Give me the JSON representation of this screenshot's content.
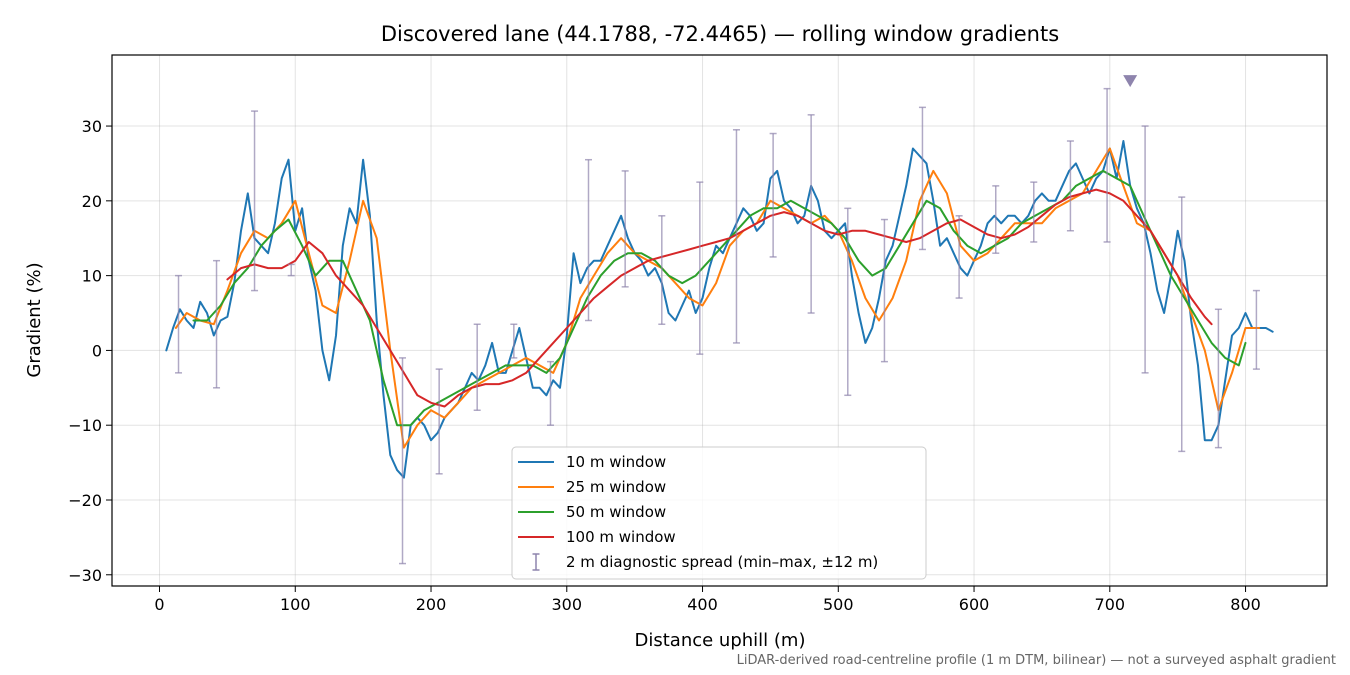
{
  "chart_data": {
    "type": "line",
    "title": "Discovered lane (44.1788, -72.4465) — rolling window gradients",
    "xlabel": "Distance uphill (m)",
    "ylabel": "Gradient (%)",
    "xlim": [
      -35,
      860
    ],
    "ylim": [
      -31.5,
      39.5
    ],
    "x_ticks": [
      0,
      100,
      200,
      300,
      400,
      500,
      600,
      700,
      800
    ],
    "y_ticks": [
      -30,
      -20,
      -10,
      0,
      10,
      20,
      30
    ],
    "x_tick_labels": [
      "0",
      "100",
      "200",
      "300",
      "400",
      "500",
      "600",
      "700",
      "800"
    ],
    "y_tick_labels": [
      "−30",
      "−20",
      "−10",
      "0",
      "10",
      "20",
      "30"
    ],
    "grid": true,
    "legend_position": "bottom-center",
    "footnote": "LiDAR-derived road-centreline profile (1 m DTM, bilinear) — not a surveyed asphalt gradient",
    "series": [
      {
        "name": "10 m window",
        "color": "#1f77b4",
        "x": [
          5,
          10,
          15,
          20,
          25,
          30,
          35,
          40,
          45,
          50,
          55,
          60,
          65,
          70,
          75,
          80,
          85,
          90,
          95,
          100,
          105,
          110,
          115,
          120,
          125,
          130,
          135,
          140,
          145,
          150,
          155,
          160,
          165,
          170,
          175,
          180,
          185,
          190,
          195,
          200,
          205,
          210,
          215,
          220,
          225,
          230,
          235,
          240,
          245,
          250,
          255,
          260,
          265,
          270,
          275,
          280,
          285,
          290,
          295,
          300,
          305,
          310,
          315,
          320,
          325,
          330,
          335,
          340,
          345,
          350,
          355,
          360,
          365,
          370,
          375,
          380,
          385,
          390,
          395,
          400,
          405,
          410,
          415,
          420,
          425,
          430,
          435,
          440,
          445,
          450,
          455,
          460,
          465,
          470,
          475,
          480,
          485,
          490,
          495,
          500,
          505,
          510,
          515,
          520,
          525,
          530,
          535,
          540,
          545,
          550,
          555,
          560,
          565,
          570,
          575,
          580,
          585,
          590,
          595,
          600,
          605,
          610,
          615,
          620,
          625,
          630,
          635,
          640,
          645,
          650,
          655,
          660,
          665,
          670,
          675,
          680,
          685,
          690,
          695,
          700,
          705,
          710,
          715,
          720,
          725,
          730,
          735,
          740,
          745,
          750,
          755,
          760,
          765,
          770,
          775,
          780,
          785,
          790,
          795,
          800,
          805,
          810,
          815,
          820
        ],
        "values": [
          0,
          3,
          5.5,
          4,
          3,
          6.5,
          5,
          2,
          4,
          4.5,
          9,
          16,
          21,
          15,
          14,
          13,
          17,
          23,
          25.5,
          16,
          19,
          12,
          8,
          0,
          -4,
          2,
          14,
          19,
          17,
          25.5,
          18,
          4,
          -6,
          -14,
          -16,
          -17,
          -10,
          -9,
          -10,
          -12,
          -11,
          -9,
          -8,
          -7,
          -5,
          -3,
          -4,
          -2,
          1,
          -3,
          -3,
          0,
          3,
          -1,
          -5,
          -5,
          -6,
          -4,
          -5,
          2,
          13,
          9,
          11,
          12,
          12,
          14,
          16,
          18,
          15,
          13,
          12,
          10,
          11,
          9,
          5,
          4,
          6,
          8,
          5,
          7,
          11,
          14,
          13,
          15,
          17,
          19,
          18,
          16,
          17,
          23,
          24,
          20,
          19,
          17,
          18,
          22,
          20,
          16,
          15,
          16,
          17,
          10,
          5,
          1,
          3,
          7,
          12,
          14,
          18,
          22,
          27,
          26,
          25,
          20,
          14,
          15,
          13,
          11,
          10,
          12,
          14,
          17,
          18,
          17,
          18,
          18,
          17,
          18,
          20,
          21,
          20,
          20,
          22,
          24,
          25,
          23,
          21,
          23,
          24,
          27,
          23,
          28,
          22,
          19,
          17,
          13,
          8,
          5,
          10,
          16,
          12,
          4,
          -2,
          -12,
          -12,
          -10,
          -4,
          2,
          3,
          5,
          3,
          3,
          3,
          2.5
        ]
      },
      {
        "name": "25 m window",
        "color": "#ff7f0e",
        "x": [
          12,
          20,
          30,
          40,
          50,
          60,
          70,
          80,
          90,
          100,
          110,
          120,
          130,
          140,
          150,
          160,
          170,
          180,
          190,
          200,
          210,
          220,
          230,
          240,
          250,
          260,
          270,
          280,
          290,
          300,
          310,
          320,
          330,
          340,
          350,
          360,
          370,
          380,
          390,
          400,
          410,
          420,
          430,
          440,
          450,
          460,
          470,
          480,
          490,
          500,
          510,
          520,
          530,
          540,
          550,
          560,
          570,
          580,
          590,
          600,
          610,
          620,
          630,
          640,
          650,
          660,
          670,
          680,
          690,
          700,
          710,
          720,
          730,
          740,
          750,
          760,
          770,
          780,
          790,
          800,
          810
        ],
        "values": [
          3,
          5,
          4,
          3.5,
          8,
          13,
          16,
          15,
          17,
          20,
          13,
          6,
          5,
          12,
          20,
          15,
          0,
          -13,
          -10,
          -8,
          -9,
          -7,
          -5,
          -4,
          -3,
          -2,
          -1,
          -2,
          -3,
          1,
          7,
          10,
          13,
          15,
          13,
          12,
          11,
          9,
          7,
          6,
          9,
          14,
          16,
          17,
          20,
          19,
          18,
          17,
          18,
          16,
          12,
          7,
          4,
          7,
          12,
          20,
          24,
          21,
          14,
          12,
          13,
          15,
          17,
          17,
          17,
          19,
          20,
          21,
          24,
          27,
          22,
          17,
          16,
          13,
          10,
          5,
          0,
          -8,
          -3,
          3,
          3
        ]
      },
      {
        "name": "50 m window",
        "color": "#2ca02c",
        "x": [
          25,
          35,
          45,
          55,
          65,
          75,
          85,
          95,
          105,
          115,
          125,
          135,
          145,
          155,
          165,
          175,
          185,
          195,
          205,
          215,
          225,
          235,
          245,
          255,
          265,
          275,
          285,
          295,
          305,
          315,
          325,
          335,
          345,
          355,
          365,
          375,
          385,
          395,
          405,
          415,
          425,
          435,
          445,
          455,
          465,
          475,
          485,
          495,
          505,
          515,
          525,
          535,
          545,
          555,
          565,
          575,
          585,
          595,
          605,
          615,
          625,
          635,
          645,
          655,
          665,
          675,
          685,
          695,
          705,
          715,
          725,
          735,
          745,
          755,
          765,
          775,
          785,
          795,
          800
        ],
        "values": [
          4,
          4,
          6,
          9,
          11,
          14,
          16,
          17.5,
          14,
          10,
          12,
          12,
          8,
          4,
          -4,
          -10,
          -10,
          -8,
          -7,
          -6,
          -5,
          -4,
          -3,
          -2,
          -2,
          -2,
          -3,
          -1,
          3,
          7,
          10,
          12,
          13,
          13,
          12,
          10,
          9,
          10,
          12,
          14,
          16,
          18,
          19,
          19,
          20,
          19,
          18,
          17,
          15,
          12,
          10,
          11,
          14,
          17,
          20,
          19,
          16,
          14,
          13,
          14,
          15,
          17,
          18,
          19,
          20,
          22,
          23,
          24,
          23,
          22,
          18,
          14,
          10,
          7,
          4,
          1,
          -1,
          -2,
          1
        ]
      },
      {
        "name": "100 m window",
        "color": "#d62728",
        "x": [
          50,
          60,
          70,
          80,
          90,
          100,
          110,
          120,
          130,
          140,
          150,
          160,
          170,
          180,
          190,
          200,
          210,
          220,
          230,
          240,
          250,
          260,
          270,
          280,
          290,
          300,
          310,
          320,
          330,
          340,
          350,
          360,
          370,
          380,
          390,
          400,
          410,
          420,
          430,
          440,
          450,
          460,
          470,
          480,
          490,
          500,
          510,
          520,
          530,
          540,
          550,
          560,
          570,
          580,
          590,
          600,
          610,
          620,
          630,
          640,
          650,
          660,
          670,
          680,
          690,
          700,
          710,
          720,
          730,
          740,
          750,
          760,
          770,
          775
        ],
        "values": [
          9.5,
          11,
          11.5,
          11,
          11,
          12,
          14.5,
          13,
          10,
          8,
          6,
          3,
          0,
          -3,
          -6,
          -7,
          -7.5,
          -6,
          -5,
          -4.5,
          -4.5,
          -4,
          -3,
          -1,
          1,
          3,
          5,
          7,
          8.5,
          10,
          11,
          12,
          12.5,
          13,
          13.5,
          14,
          14.5,
          15,
          16,
          17,
          18,
          18.5,
          18,
          17,
          16,
          15.5,
          16,
          16,
          15.5,
          15,
          14.5,
          15,
          16,
          17,
          17.5,
          16.5,
          15.5,
          15,
          15.5,
          16.5,
          18,
          19.5,
          20.5,
          21,
          21.5,
          21,
          20,
          18,
          16,
          13,
          10,
          7,
          4.5,
          3.5
        ]
      },
      {
        "name": "2 m diagnostic spread (min–max, ±12 m)",
        "color": "#8e84ad",
        "kind": "errorbar",
        "x": [
          14,
          42,
          70,
          97,
          179,
          206,
          234,
          261,
          288,
          316,
          343,
          370,
          398,
          425,
          452,
          480,
          507,
          534,
          562,
          589,
          616,
          644,
          671,
          698,
          726,
          753,
          780,
          808
        ],
        "min": [
          -3,
          -5,
          8,
          10,
          -28.5,
          -16.5,
          -8,
          -1,
          -10,
          4,
          8.5,
          3.5,
          -0.5,
          1,
          12.5,
          5,
          -6,
          -1.5,
          13.5,
          7,
          13,
          14.5,
          16,
          14.5,
          -3,
          -13.5,
          -13,
          -2.5
        ],
        "max": [
          10,
          12,
          32,
          11.5,
          -1,
          -2.5,
          3.5,
          3.5,
          -1.5,
          25.5,
          24,
          18,
          22.5,
          29.5,
          29,
          31.5,
          19,
          17.5,
          32.5,
          18,
          22,
          22.5,
          28,
          35,
          30,
          20.5,
          5.5,
          8
        ]
      }
    ],
    "annotations": [
      {
        "type": "marker",
        "shape": "triangle-down",
        "x": 715,
        "y": 36,
        "color": "#8e84ad"
      }
    ]
  }
}
